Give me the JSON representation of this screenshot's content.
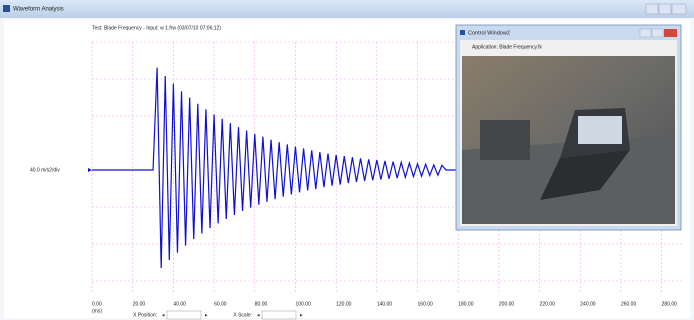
{
  "window": {
    "title": "Waveform Analysis"
  },
  "chart_data": {
    "type": "line",
    "title": "Test: Blade Frequency - Input: w 1.frw (03/07/10 07:06:12)",
    "y_label": "40.0 m/s2/div",
    "x_unit": "(ms)",
    "x": [
      0,
      30,
      32,
      34,
      36,
      38,
      40,
      42,
      44,
      46,
      48,
      50,
      52,
      54,
      56,
      58,
      60,
      62,
      64,
      66,
      68,
      70,
      72,
      74,
      76,
      78,
      80,
      82,
      84,
      86,
      88,
      90,
      92,
      94,
      96,
      98,
      100,
      102,
      104,
      106,
      108,
      110,
      112,
      114,
      116,
      118,
      120,
      122,
      124,
      126,
      128,
      130,
      132,
      134,
      136,
      138,
      140,
      142,
      144,
      146,
      148,
      150,
      152,
      154,
      156,
      158,
      160,
      162,
      164,
      166,
      168,
      170,
      172,
      174,
      280
    ],
    "series": [
      {
        "name": "Input",
        "color": "#1010d0",
        "values": [
          0,
          0,
          2.8,
          -2.68,
          2.57,
          -2.46,
          2.36,
          -2.26,
          2.15,
          -2.07,
          1.98,
          -1.89,
          1.81,
          -1.74,
          1.66,
          -1.59,
          1.52,
          -1.46,
          1.4,
          -1.34,
          1.28,
          -1.23,
          1.17,
          -1.12,
          1.08,
          -1.03,
          0.99,
          -0.95,
          0.91,
          -0.87,
          0.83,
          -0.8,
          0.76,
          -0.73,
          0.7,
          -0.67,
          0.64,
          -0.61,
          0.59,
          -0.56,
          0.54,
          -0.52,
          0.49,
          -0.47,
          0.45,
          -0.43,
          0.41,
          -0.4,
          0.38,
          -0.36,
          0.35,
          -0.33,
          0.32,
          -0.3,
          0.29,
          -0.28,
          0.27,
          -0.26,
          0.25,
          -0.24,
          0.23,
          -0.22,
          0.21,
          -0.2,
          0.19,
          -0.18,
          0.17,
          -0.17,
          0.16,
          -0.15,
          0.14,
          -0.14,
          0.13,
          0,
          0
        ]
      }
    ],
    "xlim": [
      0,
      290
    ],
    "ylim": [
      -3.5,
      3.5
    ],
    "xticks": [
      {
        "value": 0,
        "label": "0.00"
      },
      {
        "value": 20,
        "label": "20.00"
      },
      {
        "value": 40,
        "label": "40.00"
      },
      {
        "value": 60,
        "label": "60.00"
      },
      {
        "value": 80,
        "label": "80.00"
      },
      {
        "value": 100,
        "label": "100.00"
      },
      {
        "value": 120,
        "label": "120.00"
      },
      {
        "value": 140,
        "label": "140.00"
      },
      {
        "value": 160,
        "label": "160.00"
      },
      {
        "value": 180,
        "label": "180.00"
      },
      {
        "value": 200,
        "label": "200.00"
      },
      {
        "value": 220,
        "label": "220.00"
      },
      {
        "value": 240,
        "label": "240.00"
      },
      {
        "value": 260,
        "label": "260.00"
      },
      {
        "value": 280,
        "label": "280.00"
      }
    ],
    "grid": true
  },
  "controls": {
    "x_position": "X Position:",
    "x_scale": "X Scale:"
  },
  "control_window": {
    "title": "Control Window2",
    "application": "Application: Blade Frequency.N"
  }
}
